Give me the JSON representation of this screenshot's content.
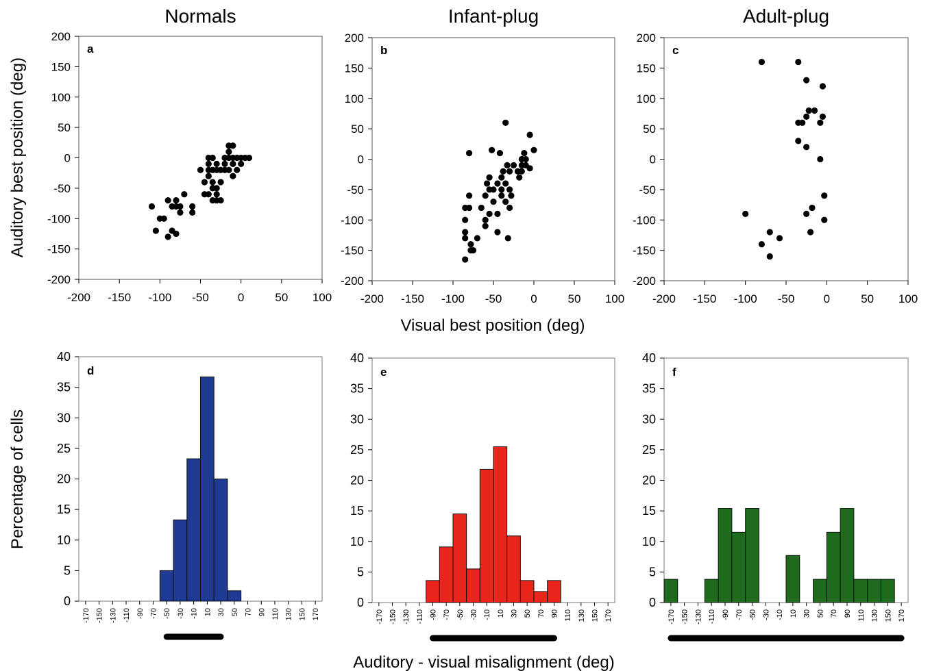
{
  "figure": {
    "top_xlabel": "Visual best position (deg)",
    "top_ylabel": "Auditory best position (deg)",
    "bottom_xlabel": "Auditory - visual misalignment (deg)",
    "bottom_ylabel": "Percentage of cells"
  },
  "colors": {
    "normals": "#1f3a93",
    "infant": "#e8261c",
    "adult": "#1e6b1e",
    "dots": "#000000"
  },
  "chart_data": [
    {
      "id": "a",
      "type": "scatter",
      "title": "Normals",
      "panel_label": "a",
      "xlim": [
        -200,
        100
      ],
      "ylim": [
        -200,
        200
      ],
      "xticks": [
        -200,
        -150,
        -100,
        -50,
        0,
        50,
        100
      ],
      "yticks": [
        200,
        150,
        100,
        50,
        0,
        -50,
        -100,
        -150,
        -200
      ],
      "points": [
        [
          -110,
          -80
        ],
        [
          -105,
          -120
        ],
        [
          -100,
          -100
        ],
        [
          -95,
          -100
        ],
        [
          -90,
          -70
        ],
        [
          -90,
          -130
        ],
        [
          -85,
          -120
        ],
        [
          -85,
          -80
        ],
        [
          -80,
          -80
        ],
        [
          -80,
          -125
        ],
        [
          -80,
          -70
        ],
        [
          -75,
          -80
        ],
        [
          -75,
          -90
        ],
        [
          -70,
          -60
        ],
        [
          -60,
          -80
        ],
        [
          -60,
          -90
        ],
        [
          -50,
          -20
        ],
        [
          -45,
          -40
        ],
        [
          -45,
          -60
        ],
        [
          -40,
          0
        ],
        [
          -40,
          -30
        ],
        [
          -40,
          -60
        ],
        [
          -40,
          -10
        ],
        [
          -40,
          -20
        ],
        [
          -35,
          -20
        ],
        [
          -35,
          -40
        ],
        [
          -35,
          -50
        ],
        [
          -35,
          -70
        ],
        [
          -35,
          0
        ],
        [
          -30,
          -20
        ],
        [
          -30,
          -10
        ],
        [
          -30,
          -50
        ],
        [
          -30,
          -60
        ],
        [
          -30,
          -70
        ],
        [
          -25,
          -20
        ],
        [
          -25,
          -40
        ],
        [
          -25,
          -70
        ],
        [
          -20,
          0
        ],
        [
          -20,
          -20
        ],
        [
          -20,
          -10
        ],
        [
          -15,
          0
        ],
        [
          -15,
          -20
        ],
        [
          -15,
          10
        ],
        [
          -15,
          20
        ],
        [
          -10,
          -30
        ],
        [
          -10,
          0
        ],
        [
          -10,
          -10
        ],
        [
          -10,
          20
        ],
        [
          -5,
          0
        ],
        [
          -5,
          -20
        ],
        [
          0,
          0
        ],
        [
          0,
          -10
        ],
        [
          5,
          0
        ],
        [
          10,
          0
        ]
      ]
    },
    {
      "id": "b",
      "type": "scatter",
      "title": "Infant-plug",
      "panel_label": "b",
      "xlim": [
        -200,
        100
      ],
      "ylim": [
        -200,
        200
      ],
      "xticks": [
        -200,
        -150,
        -100,
        -50,
        0,
        50,
        100
      ],
      "yticks": [
        200,
        150,
        100,
        50,
        0,
        -50,
        -100,
        -150,
        -200
      ],
      "points": [
        [
          -85,
          -165
        ],
        [
          -85,
          -130
        ],
        [
          -85,
          -120
        ],
        [
          -85,
          -100
        ],
        [
          -85,
          -80
        ],
        [
          -80,
          -80
        ],
        [
          -80,
          -60
        ],
        [
          -80,
          10
        ],
        [
          -78,
          -140
        ],
        [
          -78,
          -150
        ],
        [
          -75,
          -150
        ],
        [
          -70,
          -130
        ],
        [
          -65,
          -80
        ],
        [
          -60,
          -60
        ],
        [
          -60,
          -100
        ],
        [
          -60,
          -110
        ],
        [
          -58,
          -40
        ],
        [
          -55,
          -50
        ],
        [
          -55,
          -30
        ],
        [
          -55,
          -90
        ],
        [
          -52,
          15
        ],
        [
          -50,
          -50
        ],
        [
          -50,
          -70
        ],
        [
          -45,
          -90
        ],
        [
          -45,
          -120
        ],
        [
          -45,
          -40
        ],
        [
          -42,
          10
        ],
        [
          -40,
          -50
        ],
        [
          -40,
          -30
        ],
        [
          -40,
          -60
        ],
        [
          -38,
          -20
        ],
        [
          -35,
          60
        ],
        [
          -35,
          -40
        ],
        [
          -35,
          -70
        ],
        [
          -33,
          -10
        ],
        [
          -32,
          -130
        ],
        [
          -30,
          -80
        ],
        [
          -30,
          -50
        ],
        [
          -30,
          -20
        ],
        [
          -28,
          -60
        ],
        [
          -25,
          -10
        ],
        [
          -20,
          -20
        ],
        [
          -18,
          -30
        ],
        [
          -15,
          0
        ],
        [
          -15,
          -10
        ],
        [
          -15,
          -20
        ],
        [
          -12,
          10
        ],
        [
          -10,
          0
        ],
        [
          -10,
          -10
        ],
        [
          -5,
          40
        ],
        [
          -5,
          -15
        ],
        [
          0,
          15
        ]
      ]
    },
    {
      "id": "c",
      "type": "scatter",
      "title": "Adult-plug",
      "panel_label": "c",
      "xlim": [
        -200,
        100
      ],
      "ylim": [
        -200,
        200
      ],
      "xticks": [
        -200,
        -150,
        -100,
        -50,
        0,
        50,
        100
      ],
      "yticks": [
        200,
        150,
        100,
        50,
        0,
        -50,
        -100,
        -150,
        -200
      ],
      "points": [
        [
          -100,
          -90
        ],
        [
          -80,
          -140
        ],
        [
          -80,
          160
        ],
        [
          -70,
          -120
        ],
        [
          -70,
          -160
        ],
        [
          -58,
          -130
        ],
        [
          -35,
          160
        ],
        [
          -35,
          60
        ],
        [
          -35,
          30
        ],
        [
          -30,
          60
        ],
        [
          -25,
          130
        ],
        [
          -25,
          20
        ],
        [
          -25,
          70
        ],
        [
          -25,
          -90
        ],
        [
          -22,
          80
        ],
        [
          -20,
          -120
        ],
        [
          -18,
          -80
        ],
        [
          -15,
          80
        ],
        [
          -8,
          0
        ],
        [
          -8,
          60
        ],
        [
          -5,
          70
        ],
        [
          -5,
          120
        ],
        [
          -3,
          -60
        ],
        [
          -3,
          -100
        ]
      ]
    },
    {
      "id": "d",
      "type": "bar",
      "panel_label": "d",
      "ylim": [
        0,
        40
      ],
      "yticks": [
        40,
        35,
        30,
        25,
        20,
        15,
        10,
        5,
        0
      ],
      "categories": [
        "-170",
        "-150",
        "-130",
        "-110",
        "-90",
        "-70",
        "-50",
        "-30",
        "-10",
        "10",
        "30",
        "50",
        "70",
        "90",
        "110",
        "130",
        "150",
        "170"
      ],
      "values": [
        0,
        0,
        0,
        0,
        0,
        0,
        5,
        13.3,
        23.3,
        36.7,
        20,
        1.7,
        0,
        0,
        0,
        0,
        0,
        0
      ],
      "range_bar": [
        -50,
        30
      ]
    },
    {
      "id": "e",
      "type": "bar",
      "panel_label": "e",
      "ylim": [
        0,
        40
      ],
      "yticks": [
        40,
        35,
        30,
        25,
        20,
        15,
        10,
        5,
        0
      ],
      "categories": [
        "-170",
        "-150",
        "-130",
        "-110",
        "-90",
        "-70",
        "-50",
        "-30",
        "-10",
        "10",
        "30",
        "50",
        "70",
        "90",
        "110",
        "130",
        "150",
        "170"
      ],
      "values": [
        0,
        0,
        0,
        0,
        3.6,
        9.1,
        14.5,
        5.5,
        21.8,
        25.5,
        10.9,
        3.6,
        1.8,
        3.6,
        0,
        0,
        0,
        0
      ],
      "range_bar": [
        -90,
        90
      ]
    },
    {
      "id": "f",
      "type": "bar",
      "panel_label": "f",
      "ylim": [
        0,
        40
      ],
      "yticks": [
        40,
        35,
        30,
        25,
        20,
        15,
        10,
        5,
        0
      ],
      "categories": [
        "-170",
        "-150",
        "-130",
        "-110",
        "-90",
        "-70",
        "-50",
        "-30",
        "-10",
        "10",
        "30",
        "50",
        "70",
        "90",
        "110",
        "130",
        "150",
        "170"
      ],
      "values": [
        3.8,
        0,
        0,
        3.8,
        15.4,
        11.5,
        15.4,
        0,
        0,
        7.7,
        0,
        3.8,
        11.5,
        15.4,
        3.8,
        3.8,
        3.8,
        0
      ],
      "range_bar": [
        -170,
        170
      ]
    }
  ]
}
